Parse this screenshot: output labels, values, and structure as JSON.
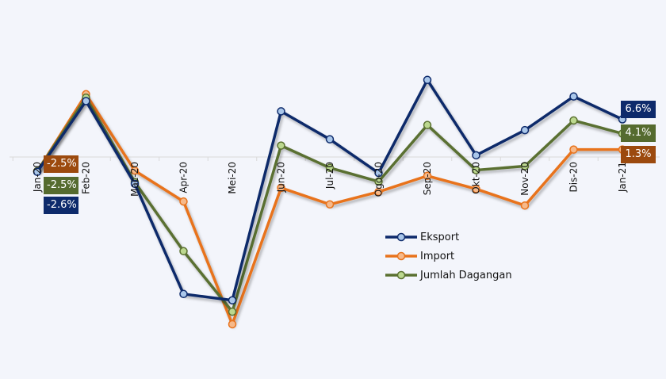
{
  "chart_data": {
    "type": "line",
    "title": "",
    "xlabel": "",
    "ylabel": "",
    "categories": [
      "Jan-20",
      "Feb-20",
      "Mac-20",
      "Apr-20",
      "Mei-20",
      "Jun-20",
      "Jul-20",
      "Ogo-20",
      "Sep-20",
      "Okt-20",
      "Nov-20",
      "Dis-20",
      "Jan-21"
    ],
    "series": [
      {
        "name": "Eksport",
        "color": "#0d2a6b",
        "marker_color": "#aac7ea",
        "values": [
          -2.6,
          9.8,
          -4.7,
          -24.0,
          -25.1,
          8.0,
          3.1,
          -2.8,
          13.5,
          0.3,
          4.7,
          10.6,
          6.6
        ]
      },
      {
        "name": "Import",
        "color": "#e8731c",
        "marker_color": "#f6b98a",
        "values": [
          -2.5,
          11.0,
          -2.4,
          -7.8,
          -29.3,
          -5.4,
          -8.3,
          -6.1,
          -3.3,
          -5.6,
          -8.5,
          1.3,
          1.3
        ]
      },
      {
        "name": "Jumlah Dagangan",
        "color": "#5a7030",
        "marker_color": "#bcd88f",
        "values": [
          -2.5,
          10.4,
          -4.4,
          -16.5,
          -27.1,
          2.0,
          -1.9,
          -4.3,
          5.6,
          -2.3,
          -1.6,
          6.4,
          4.1
        ]
      }
    ],
    "data_labels": {
      "Jan-20": {
        "Import": "-2.5%",
        "Jumlah Dagangan": "-2.5%",
        "Eksport": "-2.6%"
      },
      "Jan-21": {
        "Eksport": "6.6%",
        "Jumlah Dagangan": "4.1%",
        "Import": "1.3%"
      }
    },
    "legend_position": "inside-right",
    "grid": false,
    "y_axis_visible": false
  },
  "labels": {
    "jan20_import": "-2.5%",
    "jan20_jumlah": "-2.5%",
    "jan20_eksport": "-2.6%",
    "jan21_eksport": "6.6%",
    "jan21_jumlah": "4.1%",
    "jan21_import": "1.3%"
  },
  "legend": [
    {
      "label": "Eksport"
    },
    {
      "label": "Import"
    },
    {
      "label": "Jumlah Dagangan"
    }
  ]
}
